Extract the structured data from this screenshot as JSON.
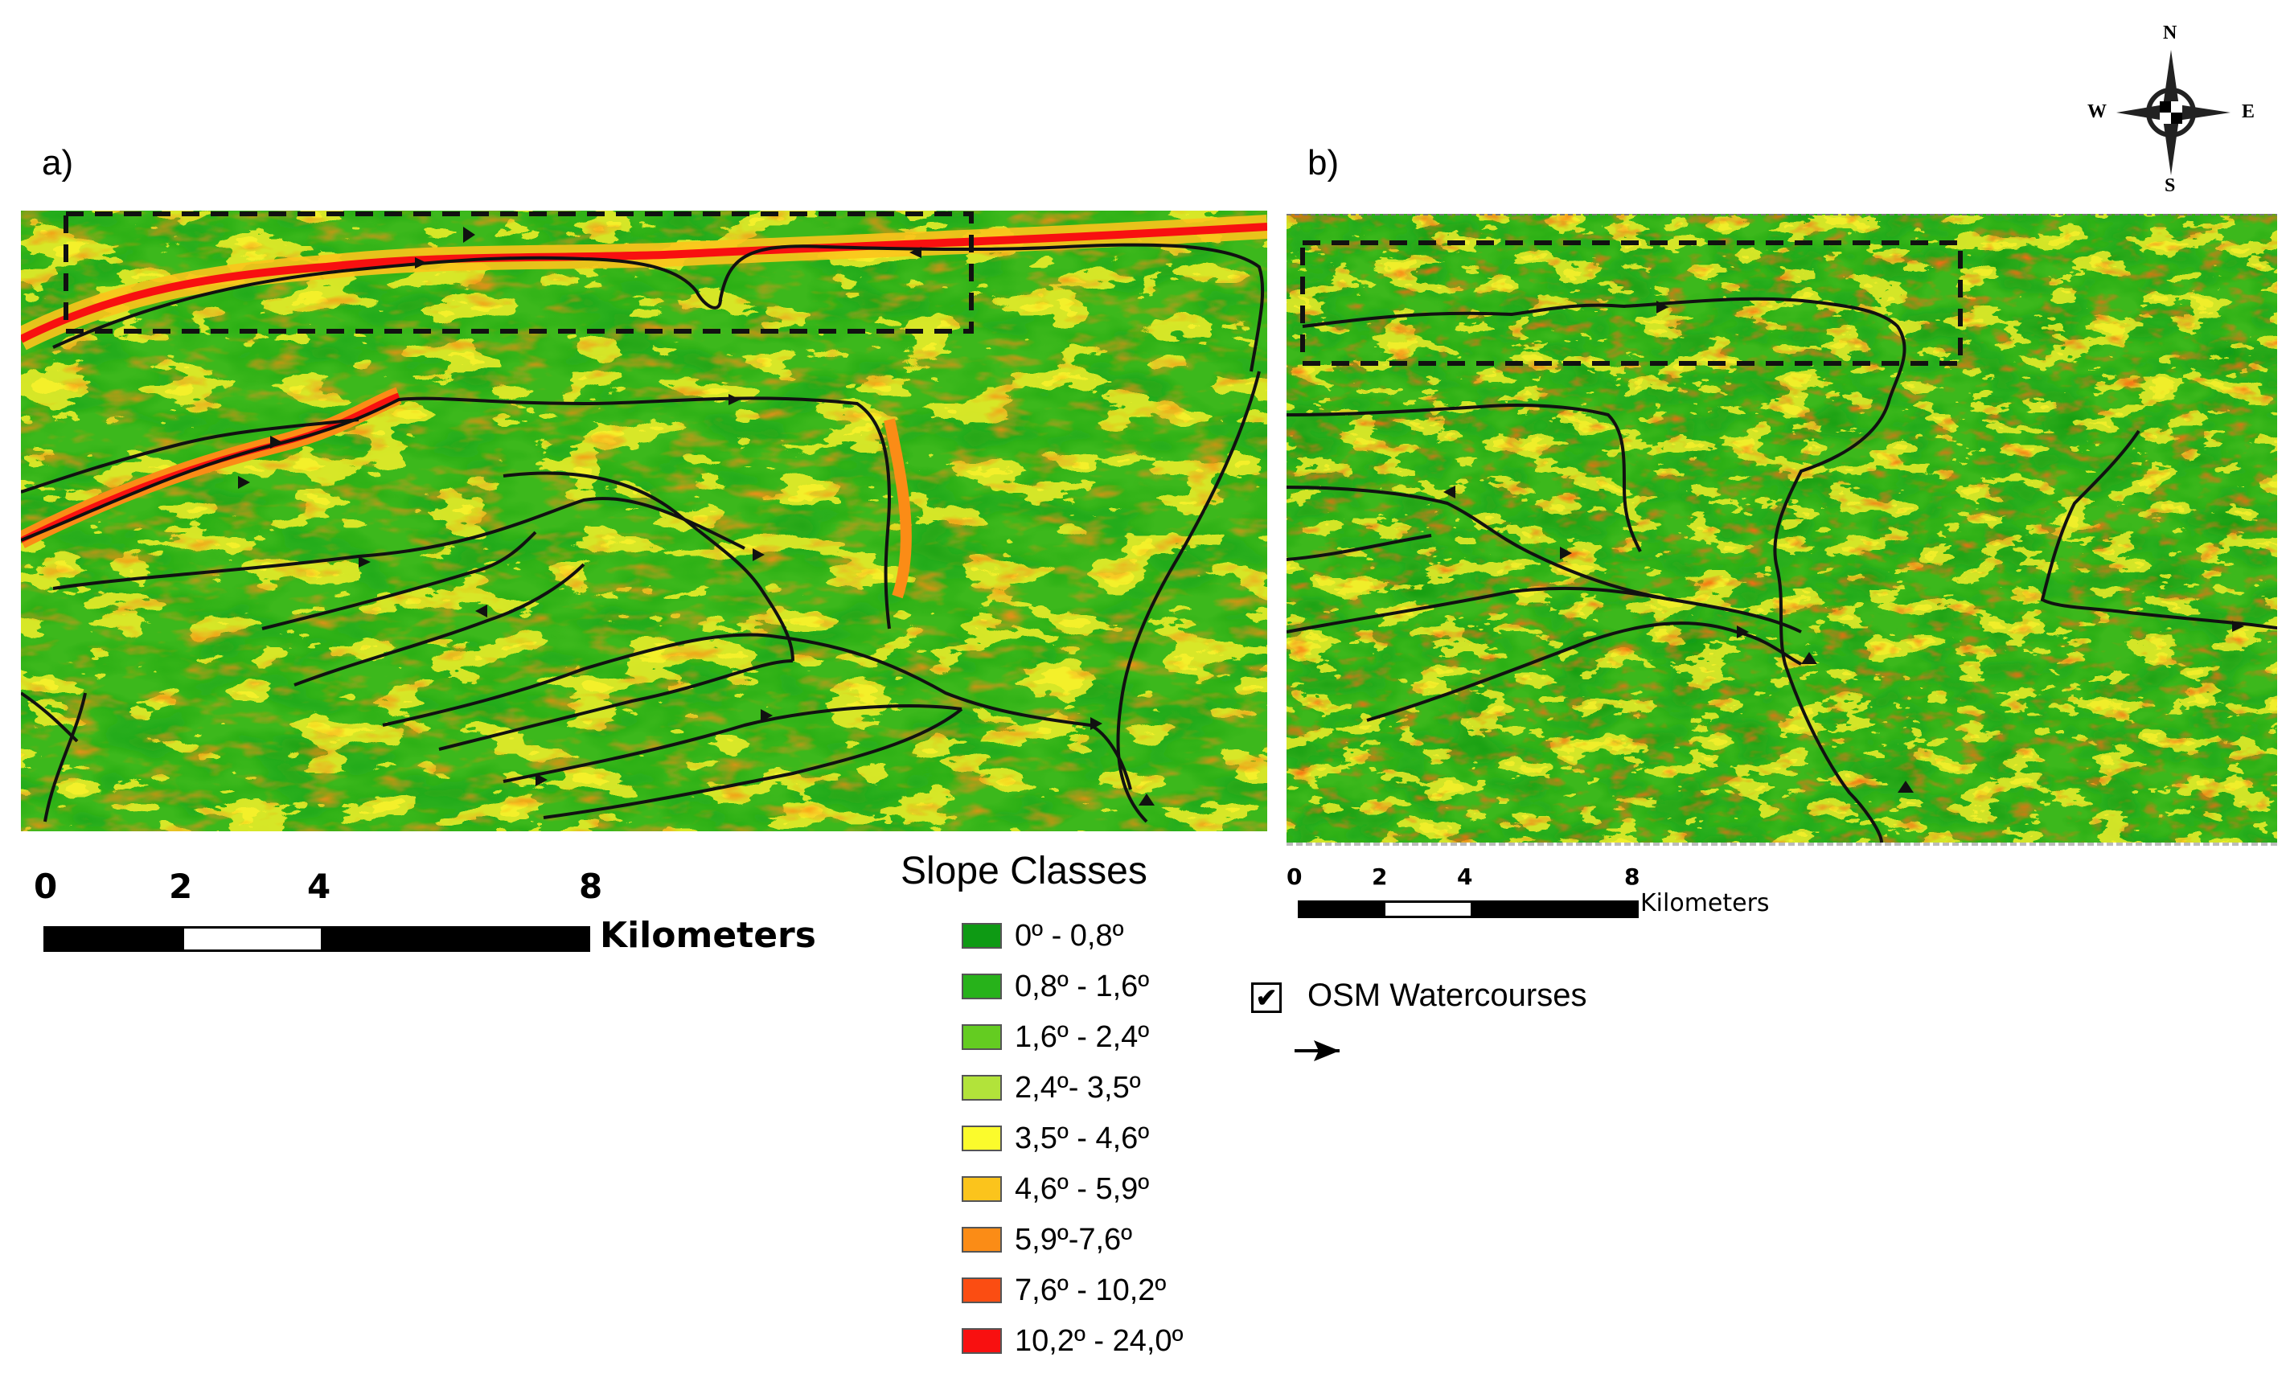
{
  "panels": [
    {
      "label": "a)",
      "scale": {
        "ticks": [
          "0",
          "2",
          "4",
          "8"
        ],
        "unit": "Kilometers"
      }
    },
    {
      "label": "b)",
      "scale": {
        "ticks": [
          "0",
          "2",
          "4",
          "8"
        ],
        "unit": "Kilometers"
      }
    }
  ],
  "compass": {
    "n": "N",
    "s": "S",
    "e": "E",
    "w": "W"
  },
  "legend": {
    "title": "Slope Classes",
    "classes": [
      {
        "label": "0º - 0,8º",
        "color": "#0e9a14"
      },
      {
        "label": "0,8º - 1,6º",
        "color": "#27b21a"
      },
      {
        "label": "1,6º - 2,4º",
        "color": "#64cc21"
      },
      {
        "label": "2,4º- 3,5º",
        "color": "#b2e33a"
      },
      {
        "label": "3,5º - 4,6º",
        "color": "#fbfb2c"
      },
      {
        "label": "4,6º - 5,9º",
        "color": "#fbc41c"
      },
      {
        "label": "5,9º-7,6º",
        "color": "#fb8c16"
      },
      {
        "label": "7,6º - 10,2º",
        "color": "#fb4d12"
      },
      {
        "label": "10,2º - 24,0º",
        "color": "#f81010"
      }
    ]
  },
  "watercourses_legend": {
    "label": "OSM Watercourses",
    "checked": true
  }
}
